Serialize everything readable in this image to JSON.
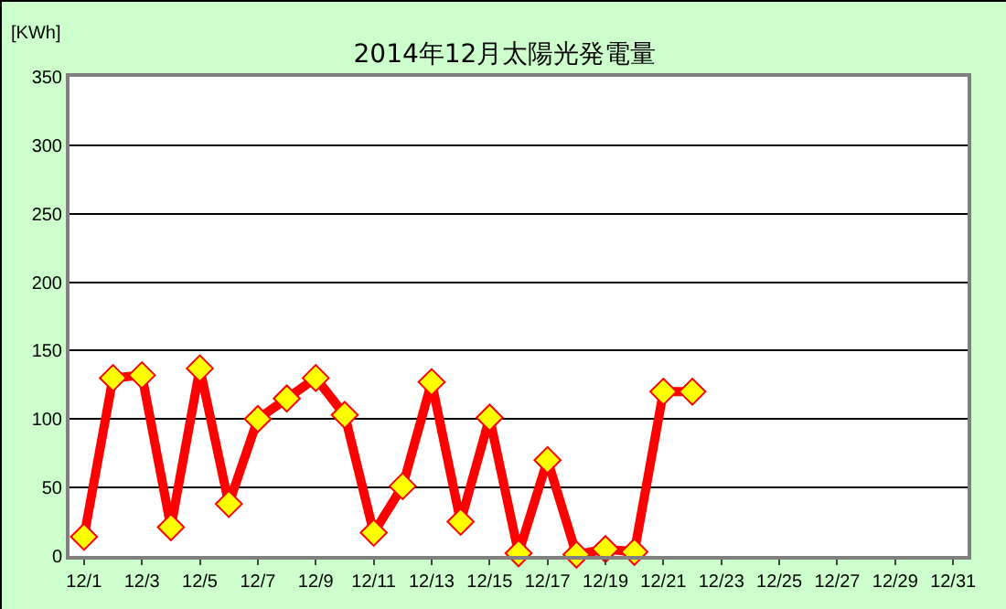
{
  "chart_data": {
    "type": "line",
    "title": "2014年12月太陽光発電量",
    "ylabel": "[KWh]",
    "categories": [
      "12/1",
      null,
      "12/3",
      null,
      "12/5",
      null,
      "12/7",
      null,
      "12/9",
      null,
      "12/11",
      null,
      "12/13",
      null,
      "12/15",
      null,
      "12/17",
      null,
      "12/19",
      null,
      "12/21",
      null,
      "12/23",
      null,
      "12/25",
      null,
      "12/27",
      null,
      "12/29",
      null,
      "12/31"
    ],
    "series": [
      {
        "color": "#ff0000",
        "values": [
          14,
          130,
          132,
          21,
          137,
          38,
          100,
          115,
          130,
          103,
          17,
          51,
          127,
          25,
          101,
          2,
          70,
          1,
          5,
          3,
          120,
          120,
          null,
          null,
          null,
          null,
          null,
          null,
          null,
          null,
          null
        ]
      }
    ],
    "ylim": [
      0,
      350
    ],
    "yticks": [
      0,
      50,
      100,
      150,
      200,
      250,
      300,
      350
    ],
    "grid": "y",
    "marker": "diamond",
    "line_style": "solid"
  }
}
